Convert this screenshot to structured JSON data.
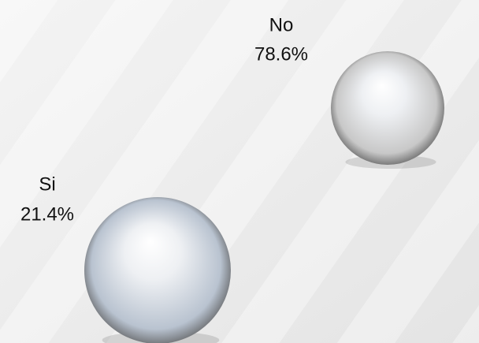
{
  "chart_data": {
    "type": "sphere",
    "categories": [
      "No",
      "Si"
    ],
    "values": [
      78.6,
      21.4
    ],
    "value_labels": [
      "78.6%",
      "21.4%"
    ],
    "colors": [
      "#c8c8c8",
      "#b9c3d0"
    ]
  }
}
